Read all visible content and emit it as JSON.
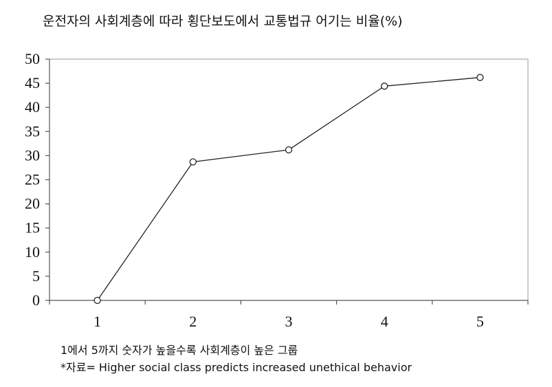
{
  "chart_data": {
    "type": "line",
    "title": "운전자의 사회계층에 따라 횡단보도에서 교통법규 어기는 비율(%)",
    "x": [
      1,
      2,
      3,
      4,
      5
    ],
    "x_tick_labels": [
      "1",
      "2",
      "3",
      "4",
      "5"
    ],
    "series": [
      {
        "values": [
          0,
          28.7,
          31.2,
          44.4,
          46.2
        ],
        "marker": "open-circle",
        "color": "#222222"
      }
    ],
    "ylim": [
      0,
      50
    ],
    "y_ticks": [
      0,
      5,
      10,
      15,
      20,
      25,
      30,
      35,
      40,
      45,
      50
    ],
    "xlabel": "",
    "ylabel": "",
    "grid": false,
    "notes": [
      "1에서 5까지 숫자가 높을수록 사회계층이 높은 그룹",
      "*자료= Higher social class predicts increased unethical behavior"
    ]
  }
}
